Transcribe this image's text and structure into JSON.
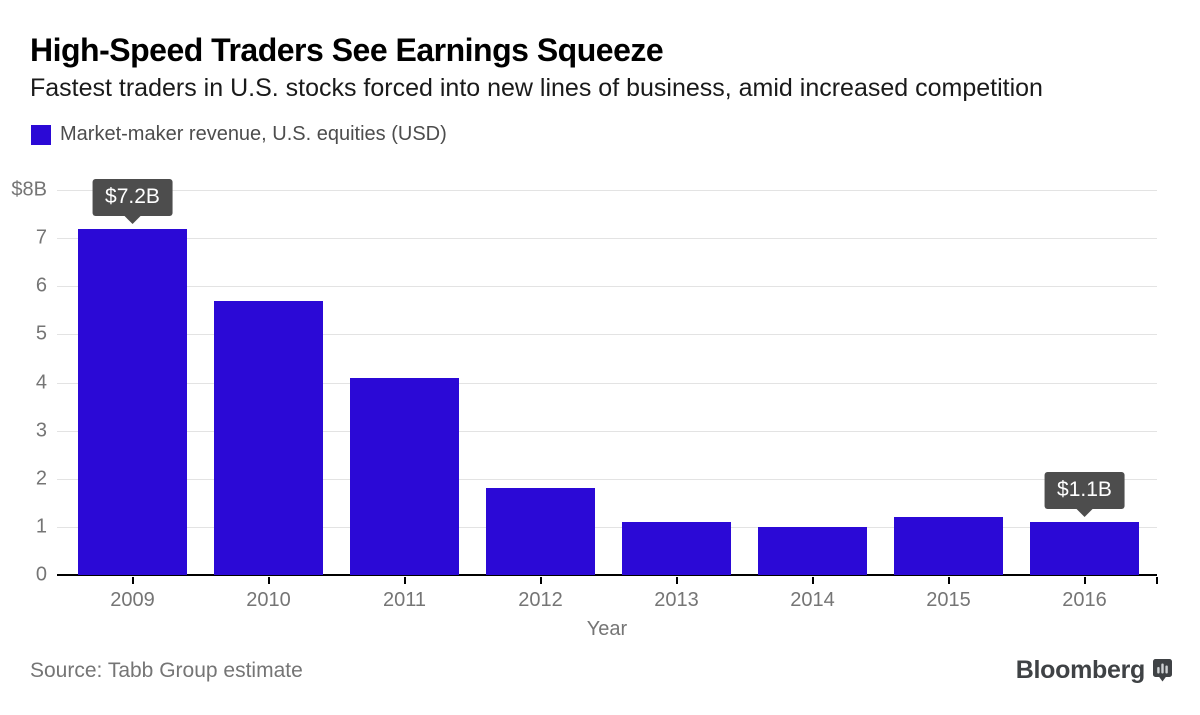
{
  "header": {
    "title": "High-Speed Traders See Earnings Squeeze",
    "subtitle": "Fastest traders in U.S. stocks forced into new lines of business, amid increased competition"
  },
  "legend": {
    "label": "Market-maker revenue, U.S. equities (USD)"
  },
  "chart_data": {
    "type": "bar",
    "title": "High-Speed Traders See Earnings Squeeze",
    "categories": [
      "2009",
      "2010",
      "2011",
      "2012",
      "2013",
      "2014",
      "2015",
      "2016"
    ],
    "values": [
      7.2,
      5.7,
      4.1,
      1.8,
      1.1,
      1.0,
      1.2,
      1.1
    ],
    "xlabel": "Year",
    "ylabel": "",
    "ylim": [
      0,
      8
    ],
    "yticks": [
      {
        "value": 8,
        "label": "$8B"
      },
      {
        "value": 7,
        "label": "7"
      },
      {
        "value": 6,
        "label": "6"
      },
      {
        "value": 5,
        "label": "5"
      },
      {
        "value": 4,
        "label": "4"
      },
      {
        "value": 3,
        "label": "3"
      },
      {
        "value": 2,
        "label": "2"
      },
      {
        "value": 1,
        "label": "1"
      },
      {
        "value": 0,
        "label": "0"
      }
    ],
    "grid": true,
    "legend_position": "top-left",
    "series_name": "Market-maker revenue, U.S. equities (USD)",
    "annotations": [
      {
        "index": 0,
        "label": "$7.2B"
      },
      {
        "index": 7,
        "label": "$1.1B"
      }
    ]
  },
  "footer": {
    "source": "Source: Tabb Group estimate",
    "brand": "Bloomberg",
    "brand_icon": "bar-chart-bubble-icon"
  },
  "colors": {
    "accent": "#2b09d6",
    "grid": "#e3e3e3",
    "axis_text": "#757575",
    "callout_bg": "#4d4d4d",
    "callout_text": "#ffffff",
    "baseline": "#000000",
    "brand_text": "#3f4245"
  }
}
